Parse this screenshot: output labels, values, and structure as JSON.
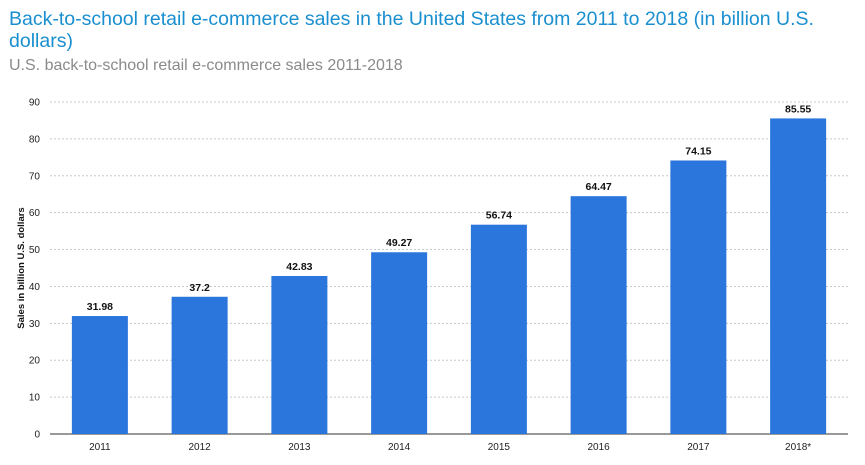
{
  "chart_data": {
    "type": "bar",
    "title": "Back-to-school retail e-commerce sales in the United States from 2011 to 2018 (in billion U.S. dollars)",
    "subtitle": "U.S. back-to-school retail e-commerce sales 2011-2018",
    "categories": [
      "2011",
      "2012",
      "2013",
      "2014",
      "2015",
      "2016",
      "2017",
      "2018*"
    ],
    "values": [
      31.98,
      37.2,
      42.83,
      49.27,
      56.74,
      64.47,
      74.15,
      85.55
    ],
    "value_labels": [
      "31.98",
      "37.2",
      "42.83",
      "49.27",
      "56.74",
      "64.47",
      "74.15",
      "85.55"
    ],
    "xlabel": "",
    "ylabel": "Sales in billion U.S. dollars",
    "ylim": [
      0,
      90
    ],
    "yticks": [
      "0",
      "10",
      "20",
      "30",
      "40",
      "50",
      "60",
      "70",
      "80",
      "90"
    ],
    "grid": true,
    "bar_color": "#2a76dd",
    "grid_color": "#c8c8c8"
  }
}
